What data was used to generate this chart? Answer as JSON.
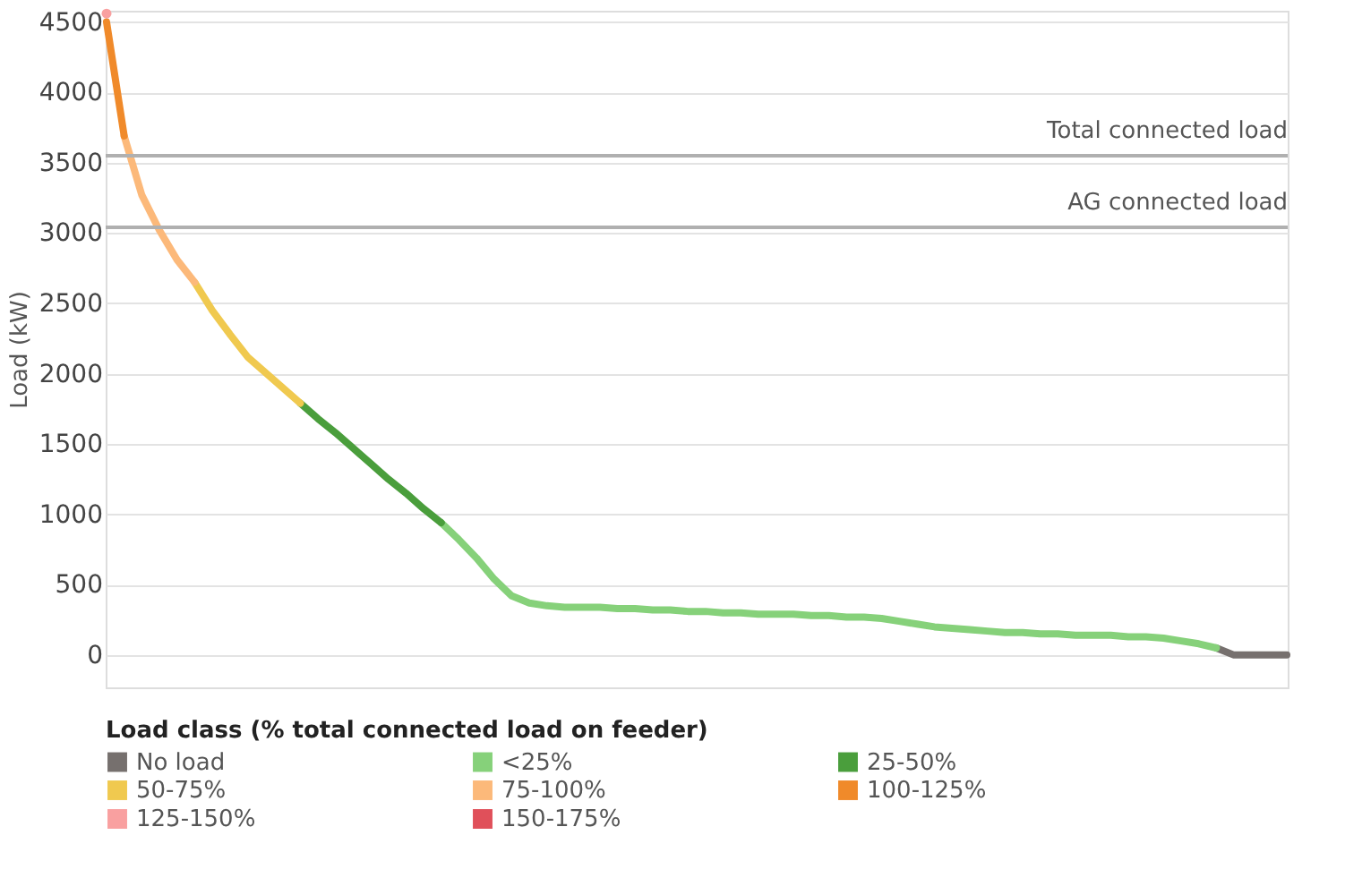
{
  "chart_data": {
    "type": "line",
    "ylabel": "Load (kW)",
    "legend_title": "Load class (% total connected load on feeder)",
    "categories": [
      null,
      null,
      null,
      null,
      null,
      null,
      null,
      null,
      null,
      null,
      null,
      null,
      null,
      null,
      null,
      null,
      null,
      null,
      null,
      null,
      null,
      null,
      null,
      null,
      null,
      null,
      null,
      null,
      null,
      null,
      null,
      null,
      null,
      null,
      null,
      null,
      null,
      null,
      null,
      null,
      null,
      null,
      null,
      null,
      null,
      null,
      null,
      null,
      null,
      null,
      null,
      null,
      null,
      null,
      null,
      null,
      null,
      null,
      null,
      null,
      null,
      null,
      null,
      null,
      null,
      null,
      null,
      null
    ],
    "series": [
      {
        "name": "No load",
        "color": "#76706e",
        "values": [
          null,
          null,
          null,
          null,
          null,
          null,
          null,
          null,
          null,
          null,
          null,
          null,
          null,
          null,
          null,
          null,
          null,
          null,
          null,
          null,
          null,
          null,
          null,
          null,
          null,
          null,
          null,
          null,
          null,
          null,
          null,
          null,
          null,
          null,
          null,
          null,
          null,
          null,
          null,
          null,
          null,
          null,
          null,
          null,
          null,
          null,
          null,
          null,
          null,
          null,
          null,
          null,
          null,
          null,
          null,
          null,
          null,
          null,
          null,
          null,
          null,
          null,
          null,
          50,
          0,
          0,
          0,
          0
        ]
      },
      {
        "name": "<25%",
        "color": "#86d17a",
        "values": [
          null,
          null,
          null,
          null,
          null,
          null,
          null,
          null,
          null,
          null,
          null,
          null,
          null,
          null,
          null,
          null,
          null,
          null,
          null,
          940,
          820,
          690,
          540,
          420,
          370,
          350,
          340,
          340,
          340,
          330,
          330,
          320,
          320,
          310,
          310,
          300,
          300,
          290,
          290,
          290,
          280,
          280,
          270,
          270,
          260,
          240,
          220,
          200,
          190,
          180,
          170,
          160,
          160,
          150,
          150,
          140,
          140,
          140,
          130,
          130,
          120,
          100,
          80,
          50,
          null,
          null,
          null,
          null
        ]
      },
      {
        "name": "25-50%",
        "color": "#4a9e3c",
        "values": [
          null,
          null,
          null,
          null,
          null,
          null,
          null,
          null,
          null,
          null,
          null,
          1790,
          1680,
          1580,
          1470,
          1360,
          1250,
          1150,
          1040,
          940,
          null,
          null,
          null,
          null,
          null,
          null,
          null,
          null,
          null,
          null,
          null,
          null,
          null,
          null,
          null,
          null,
          null,
          null,
          null,
          null,
          null,
          null,
          null,
          null,
          null,
          null,
          null,
          null,
          null,
          null,
          null,
          null,
          null,
          null,
          null,
          null,
          null,
          null,
          null,
          null,
          null,
          null,
          null,
          null,
          null,
          null,
          null,
          null
        ]
      },
      {
        "name": "50-75%",
        "color": "#f0c94f",
        "values": [
          null,
          null,
          null,
          null,
          null,
          2650,
          2450,
          2280,
          2120,
          2010,
          1900,
          1790,
          null,
          null,
          null,
          null,
          null,
          null,
          null,
          null,
          null,
          null,
          null,
          null,
          null,
          null,
          null,
          null,
          null,
          null,
          null,
          null,
          null,
          null,
          null,
          null,
          null,
          null,
          null,
          null,
          null,
          null,
          null,
          null,
          null,
          null,
          null,
          null,
          null,
          null,
          null,
          null,
          null,
          null,
          null,
          null,
          null,
          null,
          null,
          null,
          null,
          null,
          null,
          null,
          null,
          null,
          null,
          null
        ]
      },
      {
        "name": "75-100%",
        "color": "#fcb97a",
        "values": [
          null,
          3690,
          3270,
          3020,
          2810,
          2650,
          null,
          null,
          null,
          null,
          null,
          null,
          null,
          null,
          null,
          null,
          null,
          null,
          null,
          null,
          null,
          null,
          null,
          null,
          null,
          null,
          null,
          null,
          null,
          null,
          null,
          null,
          null,
          null,
          null,
          null,
          null,
          null,
          null,
          null,
          null,
          null,
          null,
          null,
          null,
          null,
          null,
          null,
          null,
          null,
          null,
          null,
          null,
          null,
          null,
          null,
          null,
          null,
          null,
          null,
          null,
          null,
          null,
          null,
          null,
          null,
          null,
          null
        ]
      },
      {
        "name": "100-125%",
        "color": "#f08a2a",
        "values": [
          4500,
          3690,
          null,
          null,
          null,
          null,
          null,
          null,
          null,
          null,
          null,
          null,
          null,
          null,
          null,
          null,
          null,
          null,
          null,
          null,
          null,
          null,
          null,
          null,
          null,
          null,
          null,
          null,
          null,
          null,
          null,
          null,
          null,
          null,
          null,
          null,
          null,
          null,
          null,
          null,
          null,
          null,
          null,
          null,
          null,
          null,
          null,
          null,
          null,
          null,
          null,
          null,
          null,
          null,
          null,
          null,
          null,
          null,
          null,
          null,
          null,
          null,
          null,
          null,
          null,
          null,
          null,
          null
        ]
      },
      {
        "name": "125-150%",
        "color": "#f9a0a0",
        "type": "scatter",
        "values": [
          4560,
          null,
          null,
          null,
          null,
          null,
          null,
          null,
          null,
          null,
          null,
          null,
          null,
          null,
          null,
          null,
          null,
          null,
          null,
          null,
          null,
          null,
          null,
          null,
          null,
          null,
          null,
          null,
          null,
          null,
          null,
          null,
          null,
          null,
          null,
          null,
          null,
          null,
          null,
          null,
          null,
          null,
          null,
          null,
          null,
          null,
          null,
          null,
          null,
          null,
          null,
          null,
          null,
          null,
          null,
          null,
          null,
          null,
          null,
          null,
          null,
          null,
          null,
          null,
          null,
          null,
          null,
          null
        ]
      },
      {
        "name": "150-175%",
        "color": "#e0505a",
        "values": [
          null,
          null,
          null,
          null,
          null,
          null,
          null,
          null,
          null,
          null,
          null,
          null,
          null,
          null,
          null,
          null,
          null,
          null,
          null,
          null,
          null,
          null,
          null,
          null,
          null,
          null,
          null,
          null,
          null,
          null,
          null,
          null,
          null,
          null,
          null,
          null,
          null,
          null,
          null,
          null,
          null,
          null,
          null,
          null,
          null,
          null,
          null,
          null,
          null,
          null,
          null,
          null,
          null,
          null,
          null,
          null,
          null,
          null,
          null,
          null,
          null,
          null,
          null,
          null,
          null,
          null,
          null,
          null
        ]
      }
    ],
    "ylim": [
      -230,
      4580
    ],
    "yticks": [
      0,
      500,
      1000,
      1500,
      2000,
      2500,
      3000,
      3500,
      4000,
      4500
    ],
    "ref_lines": [
      {
        "axis": "y",
        "value": 3550,
        "label": "Total connected load",
        "color": "#b0b0b0"
      },
      {
        "axis": "y",
        "value": 3040,
        "label": "AG connected load",
        "color": "#b0b0b0"
      }
    ],
    "grid": "y",
    "legend": "bottom",
    "tick_labels": "y",
    "line_style": "solid"
  }
}
